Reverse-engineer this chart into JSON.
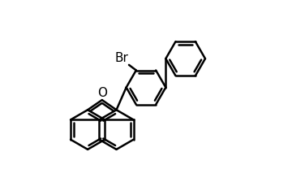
{
  "title": "",
  "background_color": "#ffffff",
  "line_color": "#000000",
  "line_width": 1.8,
  "bond_color": "#000000",
  "text_color": "#000000",
  "label_fontsize": 11,
  "figsize": [
    3.6,
    2.24
  ],
  "dpi": 100
}
